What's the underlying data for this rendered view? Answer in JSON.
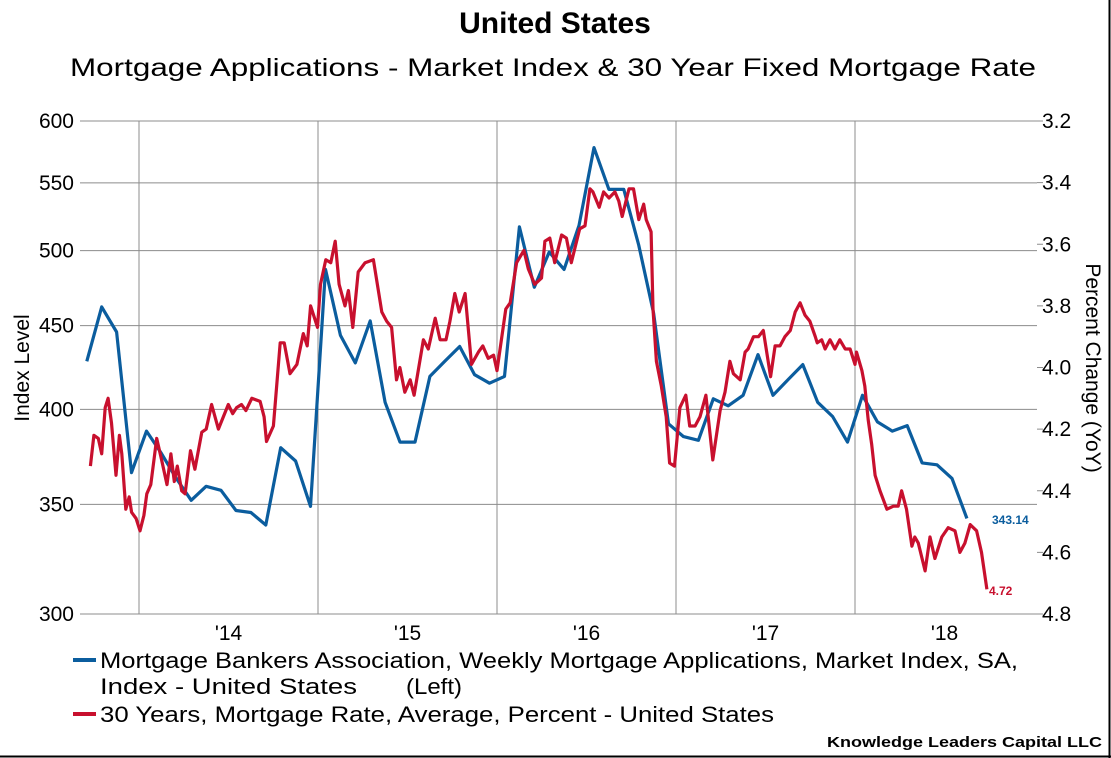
{
  "chart_data": {
    "type": "line",
    "title": "United States",
    "subtitle": "Mortgage Applications - Market Index & 30 Year Fixed Mortgage Rate",
    "ylabel_left": "Index Level",
    "ylabel_right": "Percent Change (YoY)",
    "y_left": {
      "scale": "log",
      "range": [
        300,
        600
      ],
      "ticks": [
        "600",
        "550",
        "500",
        "450",
        "400",
        "350",
        "300"
      ]
    },
    "y_right": {
      "scale": "linear",
      "inverted": true,
      "range": [
        3.2,
        4.8
      ],
      "ticks": [
        "3.2",
        "3.4",
        "3.6",
        "3.8",
        "4.0",
        "4.2",
        "4.4",
        "4.6",
        "4.8"
      ]
    },
    "x": {
      "type": "date",
      "gridlines_at_year_start": [
        2014,
        2015,
        2016,
        2017,
        2018
      ],
      "ticks": [
        {
          "year": 2014,
          "label": "'14"
        },
        {
          "year": 2015,
          "label": "'15"
        },
        {
          "year": 2016,
          "label": "'16"
        },
        {
          "year": 2017,
          "label": "'17"
        },
        {
          "year": 2018,
          "label": "'18"
        }
      ]
    },
    "grid": true,
    "legend_position": "bottom",
    "series": [
      {
        "name": "Mortgage Bankers Association, Weekly Mortgage Applications, Market Index, SA, Index - United States",
        "name_line1": "Mortgage Bankers Association, Weekly Mortgage Applications, Market Index, SA,",
        "name_line2": "Index - United States",
        "axis_note": "(Left)",
        "axis": "left",
        "color": "#0b5d9e",
        "end_label": "343.14",
        "frequency": "monthly",
        "start": "2013-09",
        "values": [
          428,
          462,
          446,
          366,
          388,
          376,
          363,
          352,
          359,
          357,
          347,
          346,
          340,
          379,
          372,
          349,
          487,
          444,
          427,
          453,
          404,
          382,
          382,
          419,
          428,
          437,
          420,
          415,
          419,
          517,
          475,
          499,
          487,
          518,
          578,
          545,
          545,
          504,
          458,
          392,
          385,
          383,
          406,
          402,
          408,
          432,
          408,
          417,
          426,
          404,
          396,
          382,
          408,
          393,
          388,
          391,
          371,
          370,
          363,
          343.14
        ]
      },
      {
        "name": "30 Years, Mortgage Rate, Average, Percent - United States",
        "axis": "right",
        "color": "#c8102e",
        "end_label": "4.72",
        "points": [
          [
            "2013-09-24",
            4.32
          ],
          [
            "2013-10-01",
            4.22
          ],
          [
            "2013-10-10",
            4.23
          ],
          [
            "2013-10-17",
            4.28
          ],
          [
            "2013-10-24",
            4.13
          ],
          [
            "2013-10-30",
            4.1
          ],
          [
            "2013-11-06",
            4.18
          ],
          [
            "2013-11-15",
            4.35
          ],
          [
            "2013-11-22",
            4.22
          ],
          [
            "2013-11-27",
            4.28
          ],
          [
            "2013-12-05",
            4.46
          ],
          [
            "2013-12-12",
            4.42
          ],
          [
            "2013-12-17",
            4.47
          ],
          [
            "2013-12-26",
            4.49
          ],
          [
            "2014-01-03",
            4.53
          ],
          [
            "2014-01-11",
            4.48
          ],
          [
            "2014-01-17",
            4.41
          ],
          [
            "2014-01-25",
            4.38
          ],
          [
            "2014-02-06",
            4.23
          ],
          [
            "2014-02-16",
            4.3
          ],
          [
            "2014-02-27",
            4.38
          ],
          [
            "2014-03-07",
            4.28
          ],
          [
            "2014-03-14",
            4.37
          ],
          [
            "2014-03-20",
            4.32
          ],
          [
            "2014-03-29",
            4.4
          ],
          [
            "2014-04-05",
            4.41
          ],
          [
            "2014-04-16",
            4.27
          ],
          [
            "2014-04-25",
            4.33
          ],
          [
            "2014-05-09",
            4.21
          ],
          [
            "2014-05-18",
            4.2
          ],
          [
            "2014-05-29",
            4.12
          ],
          [
            "2014-06-12",
            4.2
          ],
          [
            "2014-07-02",
            4.12
          ],
          [
            "2014-07-11",
            4.15
          ],
          [
            "2014-07-19",
            4.13
          ],
          [
            "2014-07-29",
            4.12
          ],
          [
            "2014-08-07",
            4.14
          ],
          [
            "2014-08-19",
            4.1
          ],
          [
            "2014-09-05",
            4.11
          ],
          [
            "2014-09-13",
            4.16
          ],
          [
            "2014-09-18",
            4.24
          ],
          [
            "2014-10-02",
            4.19
          ],
          [
            "2014-10-16",
            3.92
          ],
          [
            "2014-10-24",
            3.92
          ],
          [
            "2014-11-05",
            4.02
          ],
          [
            "2014-11-19",
            3.99
          ],
          [
            "2014-12-02",
            3.89
          ],
          [
            "2014-12-10",
            3.93
          ],
          [
            "2014-12-17",
            3.8
          ],
          [
            "2014-12-31",
            3.87
          ],
          [
            "2015-01-06",
            3.73
          ],
          [
            "2015-01-17",
            3.65
          ],
          [
            "2015-01-27",
            3.66
          ],
          [
            "2015-02-05",
            3.59
          ],
          [
            "2015-02-13",
            3.73
          ],
          [
            "2015-02-25",
            3.8
          ],
          [
            "2015-03-04",
            3.75
          ],
          [
            "2015-03-13",
            3.87
          ],
          [
            "2015-03-24",
            3.69
          ],
          [
            "2015-04-07",
            3.66
          ],
          [
            "2015-04-24",
            3.65
          ],
          [
            "2015-05-11",
            3.82
          ],
          [
            "2015-05-21",
            3.85
          ],
          [
            "2015-05-31",
            3.87
          ],
          [
            "2015-06-10",
            4.04
          ],
          [
            "2015-06-17",
            4.0
          ],
          [
            "2015-06-27",
            4.08
          ],
          [
            "2015-07-08",
            4.04
          ],
          [
            "2015-07-16",
            4.09
          ],
          [
            "2015-08-04",
            3.91
          ],
          [
            "2015-08-14",
            3.94
          ],
          [
            "2015-08-28",
            3.84
          ],
          [
            "2015-09-07",
            3.91
          ],
          [
            "2015-09-19",
            3.91
          ],
          [
            "2015-09-27",
            3.85
          ],
          [
            "2015-10-07",
            3.76
          ],
          [
            "2015-10-16",
            3.82
          ],
          [
            "2015-10-28",
            3.76
          ],
          [
            "2015-11-10",
            3.99
          ],
          [
            "2015-11-24",
            3.95
          ],
          [
            "2015-12-03",
            3.93
          ],
          [
            "2015-12-14",
            3.97
          ],
          [
            "2015-12-25",
            3.96
          ],
          [
            "2016-01-01",
            4.01
          ],
          [
            "2016-01-19",
            3.81
          ],
          [
            "2016-01-28",
            3.79
          ],
          [
            "2016-02-10",
            3.66
          ],
          [
            "2016-02-25",
            3.62
          ],
          [
            "2016-03-05",
            3.68
          ],
          [
            "2016-03-18",
            3.73
          ],
          [
            "2016-04-01",
            3.71
          ],
          [
            "2016-04-08",
            3.59
          ],
          [
            "2016-04-18",
            3.58
          ],
          [
            "2016-04-28",
            3.66
          ],
          [
            "2016-05-12",
            3.57
          ],
          [
            "2016-05-22",
            3.58
          ],
          [
            "2016-06-01",
            3.66
          ],
          [
            "2016-06-18",
            3.55
          ],
          [
            "2016-06-29",
            3.54
          ],
          [
            "2016-07-09",
            3.42
          ],
          [
            "2016-07-15",
            3.43
          ],
          [
            "2016-07-28",
            3.48
          ],
          [
            "2016-08-06",
            3.43
          ],
          [
            "2016-08-17",
            3.45
          ],
          [
            "2016-08-29",
            3.43
          ],
          [
            "2016-09-06",
            3.46
          ],
          [
            "2016-09-13",
            3.51
          ],
          [
            "2016-09-27",
            3.42
          ],
          [
            "2016-10-06",
            3.42
          ],
          [
            "2016-10-17",
            3.52
          ],
          [
            "2016-10-27",
            3.47
          ],
          [
            "2016-11-01",
            3.52
          ],
          [
            "2016-11-11",
            3.56
          ],
          [
            "2016-11-15",
            3.81
          ],
          [
            "2016-11-22",
            3.98
          ],
          [
            "2016-12-02",
            4.06
          ],
          [
            "2016-12-12",
            4.16
          ],
          [
            "2016-12-19",
            4.31
          ],
          [
            "2016-12-29",
            4.32
          ],
          [
            "2017-01-09",
            4.13
          ],
          [
            "2017-01-21",
            4.09
          ],
          [
            "2017-01-29",
            4.19
          ],
          [
            "2017-02-09",
            4.19
          ],
          [
            "2017-02-19",
            4.16
          ],
          [
            "2017-03-03",
            4.09
          ],
          [
            "2017-03-17",
            4.3
          ],
          [
            "2017-04-01",
            4.14
          ],
          [
            "2017-04-11",
            4.08
          ],
          [
            "2017-04-21",
            3.98
          ],
          [
            "2017-04-28",
            4.02
          ],
          [
            "2017-05-12",
            4.04
          ],
          [
            "2017-05-22",
            3.95
          ],
          [
            "2017-05-28",
            3.94
          ],
          [
            "2017-06-08",
            3.9
          ],
          [
            "2017-06-18",
            3.9
          ],
          [
            "2017-06-28",
            3.88
          ],
          [
            "2017-07-13",
            4.03
          ],
          [
            "2017-07-22",
            3.93
          ],
          [
            "2017-08-01",
            3.93
          ],
          [
            "2017-08-11",
            3.9
          ],
          [
            "2017-08-22",
            3.88
          ],
          [
            "2017-09-01",
            3.82
          ],
          [
            "2017-09-11",
            3.79
          ],
          [
            "2017-09-21",
            3.83
          ],
          [
            "2017-10-01",
            3.85
          ],
          [
            "2017-10-12",
            3.9
          ],
          [
            "2017-10-16",
            3.92
          ],
          [
            "2017-10-25",
            3.91
          ],
          [
            "2017-11-01",
            3.94
          ],
          [
            "2017-11-11",
            3.91
          ],
          [
            "2017-11-21",
            3.94
          ],
          [
            "2017-12-01",
            3.91
          ],
          [
            "2017-12-12",
            3.94
          ],
          [
            "2017-12-22",
            3.94
          ],
          [
            "2018-01-01",
            3.99
          ],
          [
            "2018-01-04",
            3.95
          ],
          [
            "2018-01-15",
            4.01
          ],
          [
            "2018-01-21",
            4.06
          ],
          [
            "2018-01-28",
            4.17
          ],
          [
            "2018-02-04",
            4.25
          ],
          [
            "2018-02-11",
            4.35
          ],
          [
            "2018-02-21",
            4.4
          ],
          [
            "2018-03-07",
            4.46
          ],
          [
            "2018-03-20",
            4.45
          ],
          [
            "2018-03-30",
            4.45
          ],
          [
            "2018-04-06",
            4.4
          ],
          [
            "2018-04-16",
            4.46
          ],
          [
            "2018-04-27",
            4.58
          ],
          [
            "2018-05-03",
            4.55
          ],
          [
            "2018-05-10",
            4.57
          ],
          [
            "2018-05-24",
            4.66
          ],
          [
            "2018-06-03",
            4.55
          ],
          [
            "2018-06-13",
            4.62
          ],
          [
            "2018-06-27",
            4.55
          ],
          [
            "2018-07-10",
            4.52
          ],
          [
            "2018-07-24",
            4.53
          ],
          [
            "2018-08-03",
            4.6
          ],
          [
            "2018-08-13",
            4.57
          ],
          [
            "2018-08-24",
            4.51
          ],
          [
            "2018-09-06",
            4.53
          ],
          [
            "2018-09-16",
            4.6
          ],
          [
            "2018-09-27",
            4.72
          ]
        ]
      }
    ]
  },
  "credit": "Knowledge Leaders Capital LLC"
}
